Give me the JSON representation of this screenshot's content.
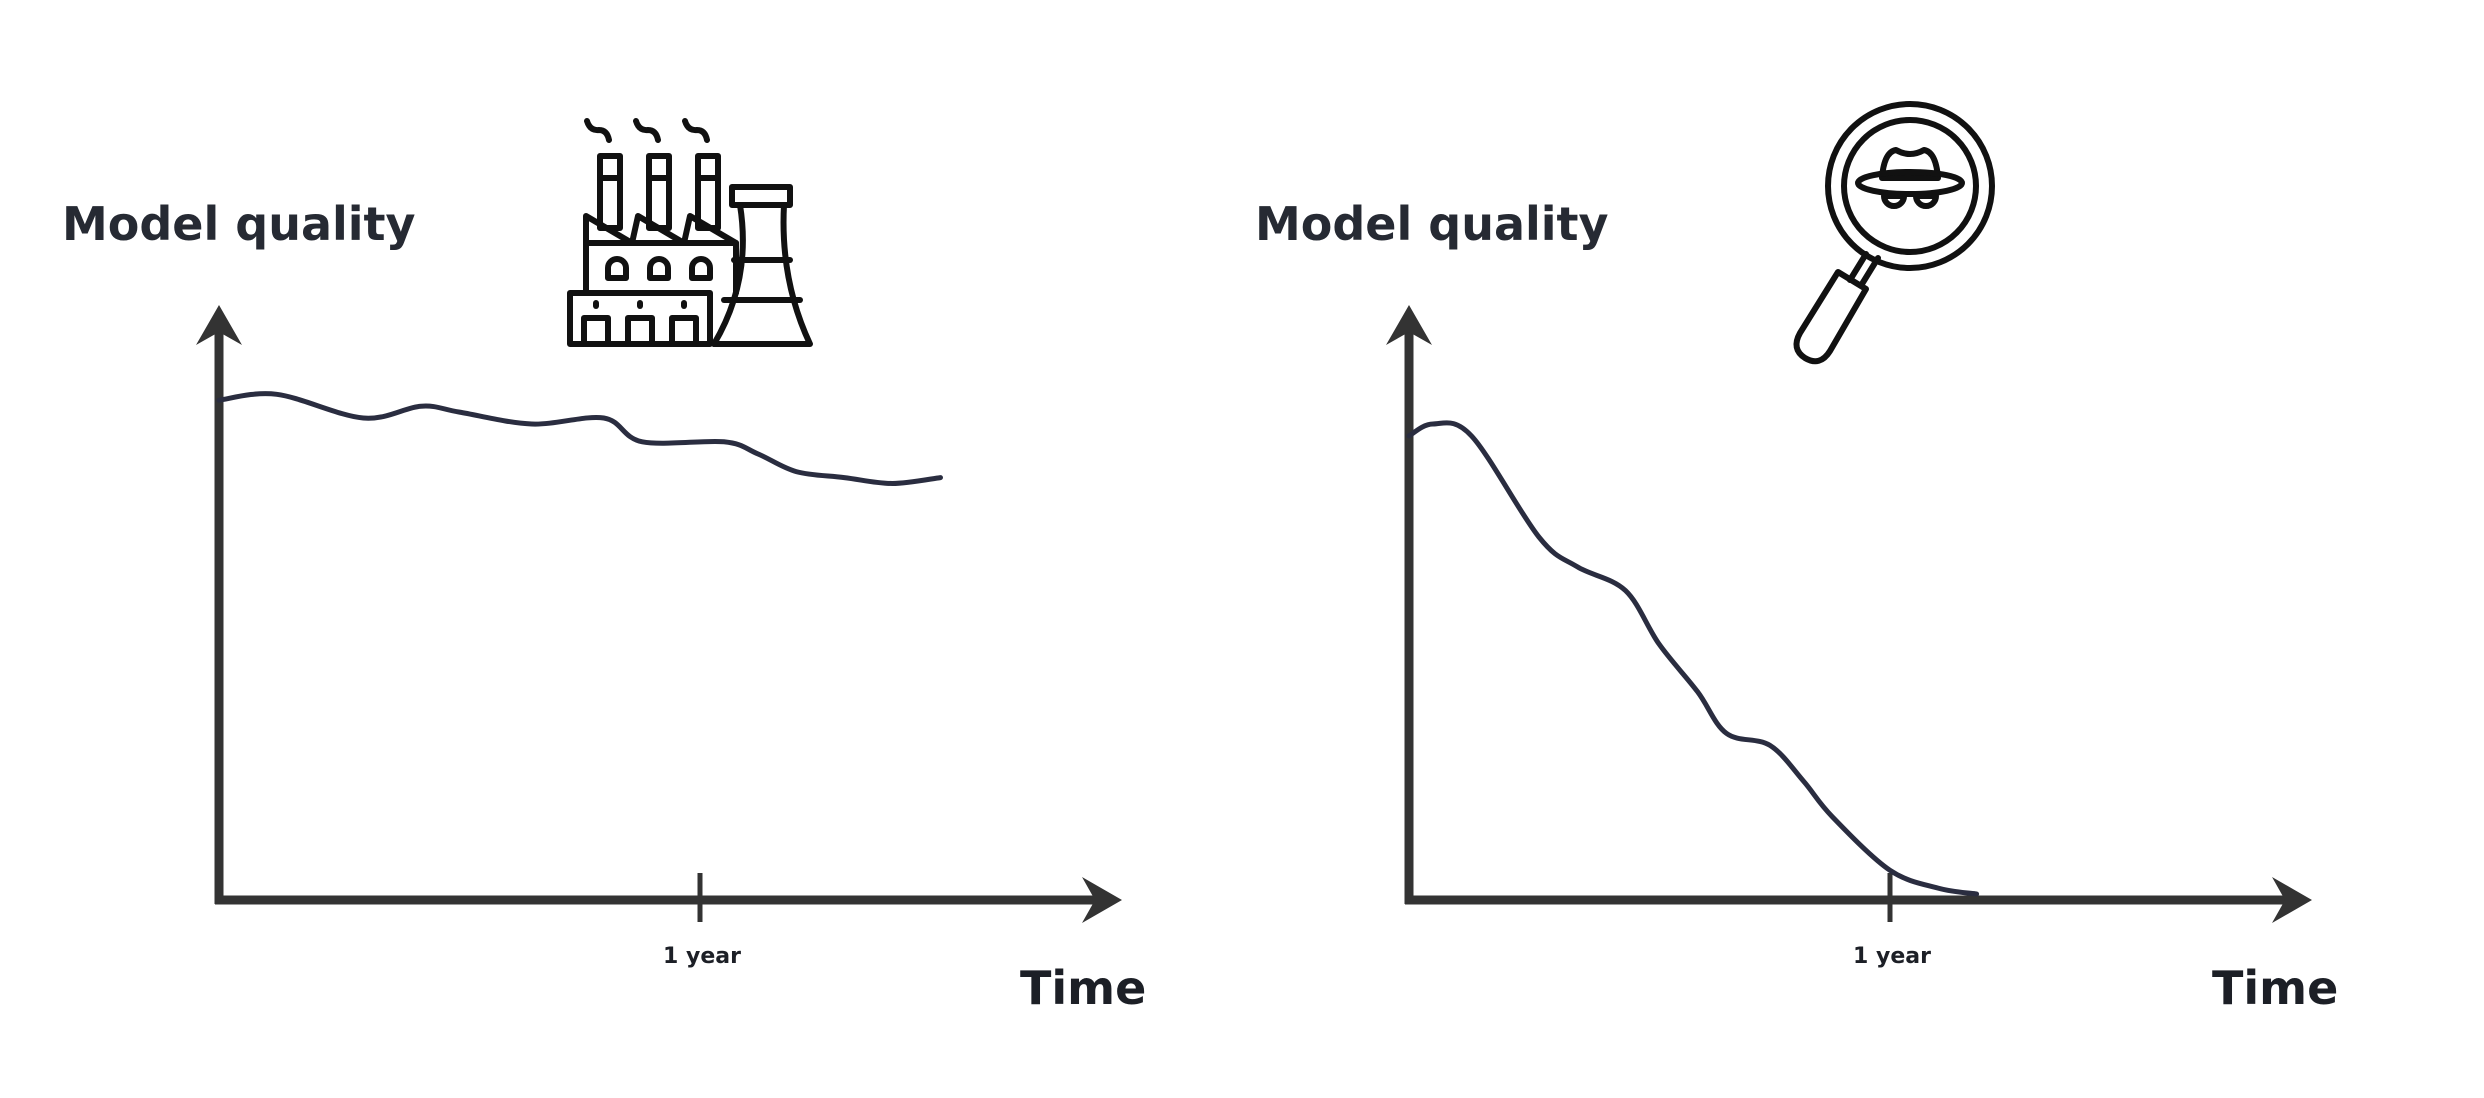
{
  "colors": {
    "axis": "#333333",
    "line": "#2a2d40",
    "icon": "#111111",
    "text": "#1c1f26"
  },
  "chart_data": [
    {
      "type": "line",
      "title": "",
      "ylabel": "Model quality",
      "xlabel": "Time",
      "tick_labels": [
        "1 year"
      ],
      "tick_positions": [
        1.0
      ],
      "xlim": [
        0,
        1.9
      ],
      "ylim": [
        0,
        1
      ],
      "icon": "factory-icon",
      "series": [
        {
          "x": [
            0,
            0.12,
            0.3,
            0.42,
            0.5,
            0.65,
            0.8,
            0.88,
            1.05,
            1.12,
            1.2,
            1.3,
            1.4,
            1.5
          ],
          "y": [
            0.84,
            0.85,
            0.81,
            0.83,
            0.82,
            0.8,
            0.81,
            0.77,
            0.77,
            0.75,
            0.72,
            0.71,
            0.7,
            0.71
          ]
        }
      ]
    },
    {
      "type": "line",
      "title": "",
      "ylabel": "Model quality",
      "xlabel": "Time",
      "tick_labels": [
        "1 year"
      ],
      "tick_positions": [
        1.0
      ],
      "xlim": [
        0,
        1.9
      ],
      "ylim": [
        0,
        1
      ],
      "icon": "magnifier-spy-icon",
      "series": [
        {
          "x": [
            0,
            0.05,
            0.13,
            0.27,
            0.35,
            0.45,
            0.52,
            0.6,
            0.66,
            0.75,
            0.82,
            0.88,
            1.0,
            1.1,
            1.18
          ],
          "y": [
            0.78,
            0.8,
            0.78,
            0.61,
            0.56,
            0.52,
            0.43,
            0.35,
            0.28,
            0.26,
            0.2,
            0.14,
            0.05,
            0.02,
            0.01
          ]
        }
      ]
    }
  ]
}
